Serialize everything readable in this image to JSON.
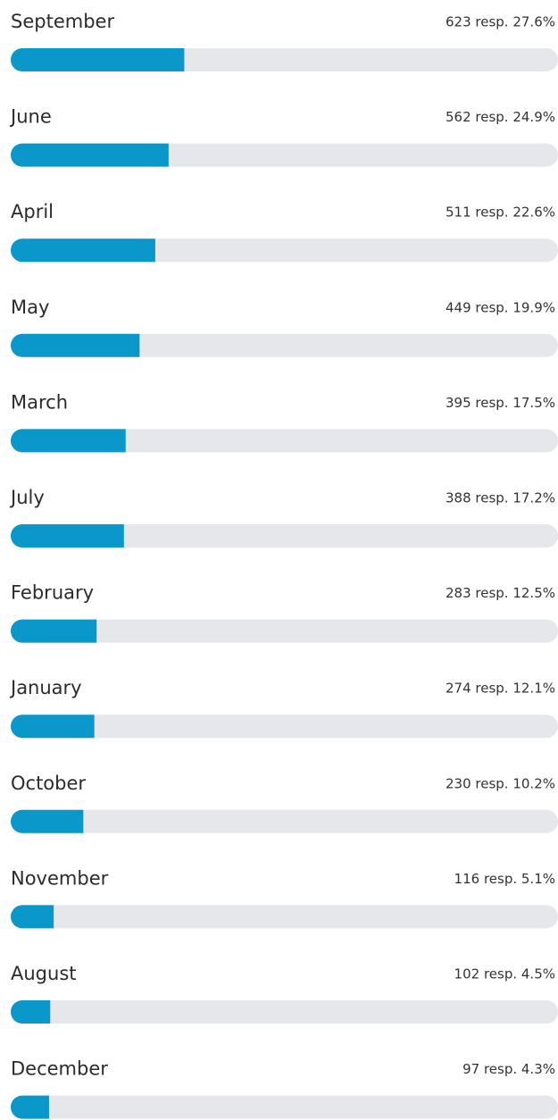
{
  "chart_data": {
    "type": "bar",
    "orientation": "horizontal",
    "color": "#0a97c9",
    "categories": [
      "September",
      "June",
      "April",
      "May",
      "March",
      "July",
      "February",
      "January",
      "October",
      "November",
      "August",
      "December"
    ],
    "values": [
      27.6,
      24.9,
      22.6,
      19.9,
      17.5,
      17.2,
      12.5,
      12.1,
      10.2,
      5.1,
      4.5,
      4.3
    ],
    "value_labels": [
      "623 resp. 27.6%",
      "562 resp. 24.9%",
      "511 resp. 22.6%",
      "449 resp. 19.9%",
      "395 resp. 17.5%",
      "388 resp. 17.2%",
      "283 resp. 12.5%",
      "274 resp. 12.1%",
      "230 resp. 10.2%",
      "116 resp. 5.1%",
      "102 resp. 4.5%",
      "97 resp. 4.3%"
    ],
    "xlim": [
      0,
      92
    ]
  }
}
